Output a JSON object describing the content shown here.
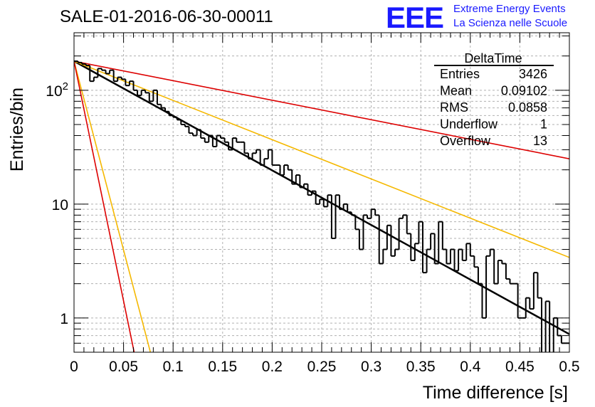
{
  "header": {
    "title": "SALE-01-2016-06-30-00011",
    "logo": {
      "mark": "EEE",
      "line1": "Extreme Energy Events",
      "line2": "La Scienza nelle Scuole",
      "color": "#1a1aff"
    }
  },
  "chart_data": {
    "type": "histogram",
    "title": "SALE-01-2016-06-30-00011",
    "xlabel": "Time difference [s]",
    "ylabel": "Entries/bin",
    "xlim": [
      0,
      0.5
    ],
    "ylim": [
      0.5,
      320
    ],
    "yscale": "log",
    "grid": true,
    "x_ticks": [
      "0",
      "0.05",
      "0.1",
      "0.15",
      "0.2",
      "0.25",
      "0.3",
      "0.35",
      "0.4",
      "0.45",
      "0.5"
    ],
    "y_ticks": [
      "1",
      "10",
      "10^2"
    ],
    "bins": {
      "x_min": 0,
      "x_max": 0.5,
      "count": 125
    },
    "histogram_color": "#000000",
    "histogram_values": [
      180,
      175,
      170,
      165,
      120,
      130,
      155,
      150,
      140,
      150,
      120,
      130,
      125,
      110,
      120,
      100,
      90,
      100,
      95,
      80,
      100,
      75,
      70,
      65,
      60,
      58,
      55,
      50,
      48,
      42,
      40,
      45,
      38,
      35,
      40,
      32,
      40,
      38,
      35,
      30,
      38,
      35,
      35,
      28,
      25,
      28,
      30,
      22,
      25,
      30,
      22,
      22,
      18,
      22,
      20,
      15,
      18,
      14,
      15,
      12,
      13,
      10,
      11,
      9.5,
      12,
      5,
      12,
      9,
      10,
      8.5,
      8,
      6,
      4,
      8,
      7.5,
      9,
      8,
      3,
      4,
      6.5,
      3.5,
      4,
      7.5,
      8,
      5.5,
      3.2,
      4.5,
      7,
      2.5,
      4,
      5.5,
      3,
      7,
      4,
      3,
      4,
      2.6,
      4,
      3.2,
      4.5,
      3.5,
      2.8,
      2,
      1,
      3.5,
      4,
      2,
      3.2,
      3,
      2.2,
      2,
      2,
      1,
      1,
      1.5,
      1.2,
      2.5,
      1.5,
      0.4,
      1.4,
      0.4,
      1,
      0.7,
      0.6,
      0.6
    ],
    "stats": {
      "name": "DeltaTime",
      "rows": [
        {
          "label": "Entries",
          "value": "3426"
        },
        {
          "label": "Mean",
          "value": "0.09102"
        },
        {
          "label": "RMS",
          "value": "0.0858"
        },
        {
          "label": "Underflow",
          "value": "1"
        },
        {
          "label": "Overflow",
          "value": "13"
        }
      ]
    },
    "fit_curves": [
      {
        "color": "#000000",
        "width": 2.5,
        "points": [
          [
            0,
            180
          ],
          [
            0.5,
            0.72
          ]
        ]
      },
      {
        "color": "#dd0000",
        "width": 1.6,
        "points": [
          [
            0,
            180
          ],
          [
            0.5,
            25
          ]
        ]
      },
      {
        "color": "#f5b800",
        "width": 1.6,
        "points": [
          [
            0,
            180
          ],
          [
            0.5,
            3.4
          ]
        ]
      },
      {
        "color": "#f5b800",
        "width": 1.6,
        "points": [
          [
            0,
            180
          ],
          [
            0.08,
            0.4
          ]
        ]
      },
      {
        "color": "#dd0000",
        "width": 1.6,
        "points": [
          [
            0,
            180
          ],
          [
            0.063,
            0.4
          ]
        ]
      }
    ]
  }
}
